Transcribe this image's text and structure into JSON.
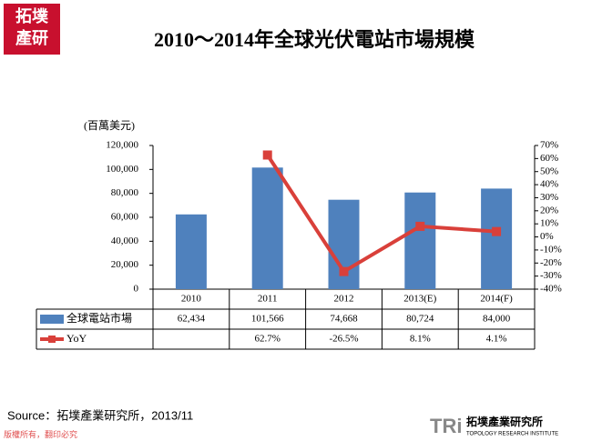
{
  "logo": {
    "line1": "拓墣",
    "line2": "產研"
  },
  "chart_data": {
    "type": "bar-line",
    "title": "2010～2014年全球光伏電站市場規模",
    "y_label": "(百萬美元)",
    "categories": [
      "2010",
      "2011",
      "2012",
      "2013(E)",
      "2014(F)"
    ],
    "series": [
      {
        "name": "全球電站市場",
        "type": "bar",
        "color": "#4f81bd",
        "axis": "y",
        "values": [
          62434,
          101566,
          74668,
          80724,
          84000
        ],
        "value_labels": [
          "62,434",
          "101,566",
          "74,668",
          "80,724",
          "84,000"
        ]
      },
      {
        "name": "YoY",
        "type": "line",
        "color": "#d9403a",
        "axis": "y2",
        "values": [
          null,
          62.7,
          -26.5,
          8.1,
          4.1
        ],
        "value_labels": [
          null,
          "62.7%",
          "-26.5%",
          "8.1%",
          "4.1%"
        ]
      }
    ],
    "ylim": [
      0,
      120000
    ],
    "yticks": [
      0,
      {
        "value": 20000,
        "label": "20,000"
      },
      {
        "value": 40000,
        "label": "40,000"
      },
      {
        "value": 60000,
        "label": "60,000"
      },
      {
        "value": 80000,
        "label": "80,000"
      },
      {
        "value": 100000,
        "label": "100,000"
      },
      {
        "value": 120000,
        "label": "120,000"
      }
    ],
    "y2lim": [
      -40,
      70
    ],
    "y2ticks": [
      {
        "value": -40,
        "label": "-40%"
      },
      {
        "value": -30,
        "label": "-30%"
      },
      {
        "value": -20,
        "label": "-20%"
      },
      {
        "value": -10,
        "label": "-10%"
      },
      {
        "value": 0,
        "label": "0%"
      },
      {
        "value": 10,
        "label": "10%"
      },
      {
        "value": 20,
        "label": "20%"
      },
      {
        "value": 30,
        "label": "30%"
      },
      {
        "value": 40,
        "label": "40%"
      },
      {
        "value": 50,
        "label": "50%"
      },
      {
        "value": 60,
        "label": "60%"
      },
      {
        "value": 70,
        "label": "70%"
      }
    ]
  },
  "source": "Source：拓墣產業研究所，2013/11",
  "footer": "版權所有，翻印必究",
  "brand": {
    "mark": "TRi",
    "name": "拓墣產業研究所",
    "english": "TOPOLOGY RESEARCH INSTITUTE"
  }
}
